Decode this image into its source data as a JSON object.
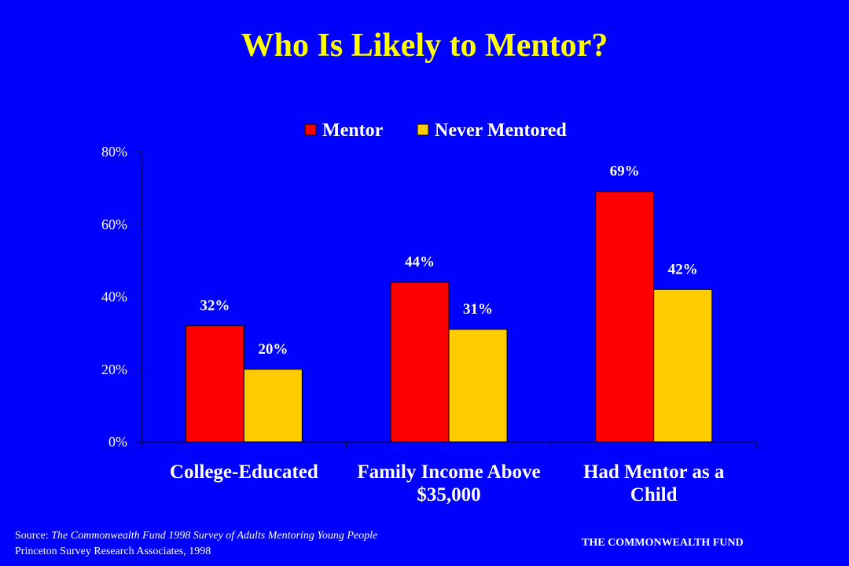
{
  "slide": {
    "title": "Who Is Likely to Mentor?",
    "source_prefix": "Source: ",
    "source_title": "The Commonwealth Fund 1998 Survey of Adults Mentoring Young People",
    "source_line2": "Princeton Survey Research Associates, 1998",
    "org": "THE COMMONWEALTH FUND"
  },
  "colors": {
    "background": "#0000ff",
    "title": "#ffff00",
    "mentor": "#ff0000",
    "never_mentored": "#ffcc00",
    "text": "#ffffff"
  },
  "chart_data": {
    "type": "bar",
    "title": "Who Is Likely to Mentor?",
    "categories": [
      [
        "College-Educated"
      ],
      [
        "Family Income Above",
        "$35,000"
      ],
      [
        "Had Mentor as a",
        "Child"
      ]
    ],
    "series": [
      {
        "name": "Mentor",
        "values": [
          32,
          44,
          69
        ],
        "labels": [
          "32%",
          "44%",
          "69%"
        ],
        "color": "#ff0000"
      },
      {
        "name": "Never Mentored",
        "values": [
          20,
          31,
          42
        ],
        "labels": [
          "20%",
          "31%",
          "42%"
        ],
        "color": "#ffcc00"
      }
    ],
    "yticks": [
      {
        "value": 0,
        "label": "0%"
      },
      {
        "value": 20,
        "label": "20%"
      },
      {
        "value": 40,
        "label": "40%"
      },
      {
        "value": 60,
        "label": "60%"
      },
      {
        "value": 80,
        "label": "80%"
      }
    ],
    "ylim": [
      0,
      80
    ],
    "xlabel": "",
    "ylabel": "",
    "legend": "top",
    "grid": false
  }
}
